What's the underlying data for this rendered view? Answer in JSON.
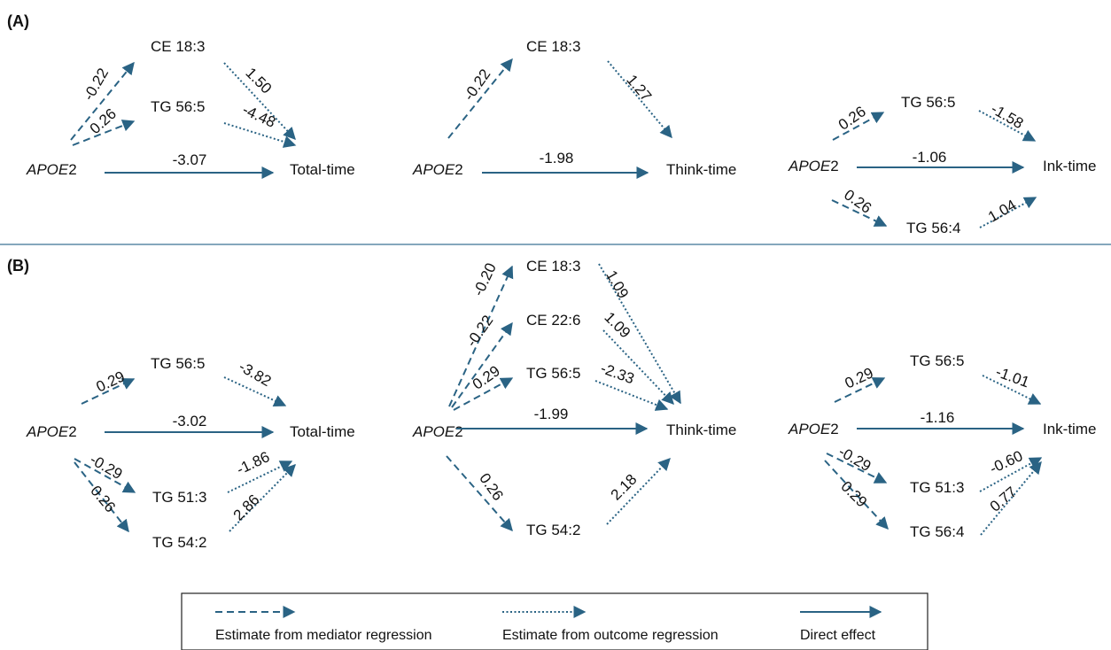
{
  "figure": {
    "panel_labels": [
      "(A)",
      "(B)"
    ],
    "exposure_text": {
      "gene": "APOE",
      "suffix": "2"
    },
    "colors": {
      "arrow": "#2a6384",
      "divider": "#5b8aa6",
      "text": "#111111",
      "legend_border": "#222222"
    },
    "legend": {
      "mediator": "Estimate from mediator regression",
      "outcome": "Estimate from outcome regression",
      "direct": "Direct effect"
    }
  },
  "panels": [
    {
      "panel": "A",
      "diagrams": [
        {
          "outcome": "Total-time",
          "direct": "-3.07",
          "mediators": [
            {
              "name": "CE 18:3",
              "a": "-0.22",
              "b": "1.50"
            },
            {
              "name": "TG 56:5",
              "a": "0.26",
              "b": "-4.48"
            }
          ]
        },
        {
          "outcome": "Think-time",
          "direct": "-1.98",
          "mediators": [
            {
              "name": "CE 18:3",
              "a": "-0.22",
              "b": "1.27"
            }
          ]
        },
        {
          "outcome": "Ink-time",
          "direct": "-1.06",
          "mediators": [
            {
              "name": "TG 56:5",
              "a": "0.26",
              "b": "-1.58"
            },
            {
              "name": "TG 56:4",
              "a": "0.26",
              "b": "1.04"
            }
          ]
        }
      ]
    },
    {
      "panel": "B",
      "diagrams": [
        {
          "outcome": "Total-time",
          "direct": "-3.02",
          "mediators": [
            {
              "name": "TG 56:5",
              "a": "0.29",
              "b": "-3.82"
            },
            {
              "name": "TG 51:3",
              "a": "-0.29",
              "b": "-1.86"
            },
            {
              "name": "TG 54:2",
              "a": "0.26",
              "b": "2.86"
            }
          ]
        },
        {
          "outcome": "Think-time",
          "direct": "-1.99",
          "mediators": [
            {
              "name": "CE 18:3",
              "a": "-0.20",
              "b": "1.09"
            },
            {
              "name": "CE 22:6",
              "a": "-0.22",
              "b": "1.09"
            },
            {
              "name": "TG 56:5",
              "a": "0.29",
              "b": "-2.33"
            },
            {
              "name": "TG 54:2",
              "a": "0.26",
              "b": "2.18"
            }
          ]
        },
        {
          "outcome": "Ink-time",
          "direct": "-1.16",
          "mediators": [
            {
              "name": "TG 56:5",
              "a": "0.29",
              "b": "-1.01"
            },
            {
              "name": "TG 51:3",
              "a": "-0.29",
              "b": "-0.60"
            },
            {
              "name": "TG 56:4",
              "a": "0.29",
              "b": "0.77"
            }
          ]
        }
      ]
    }
  ]
}
